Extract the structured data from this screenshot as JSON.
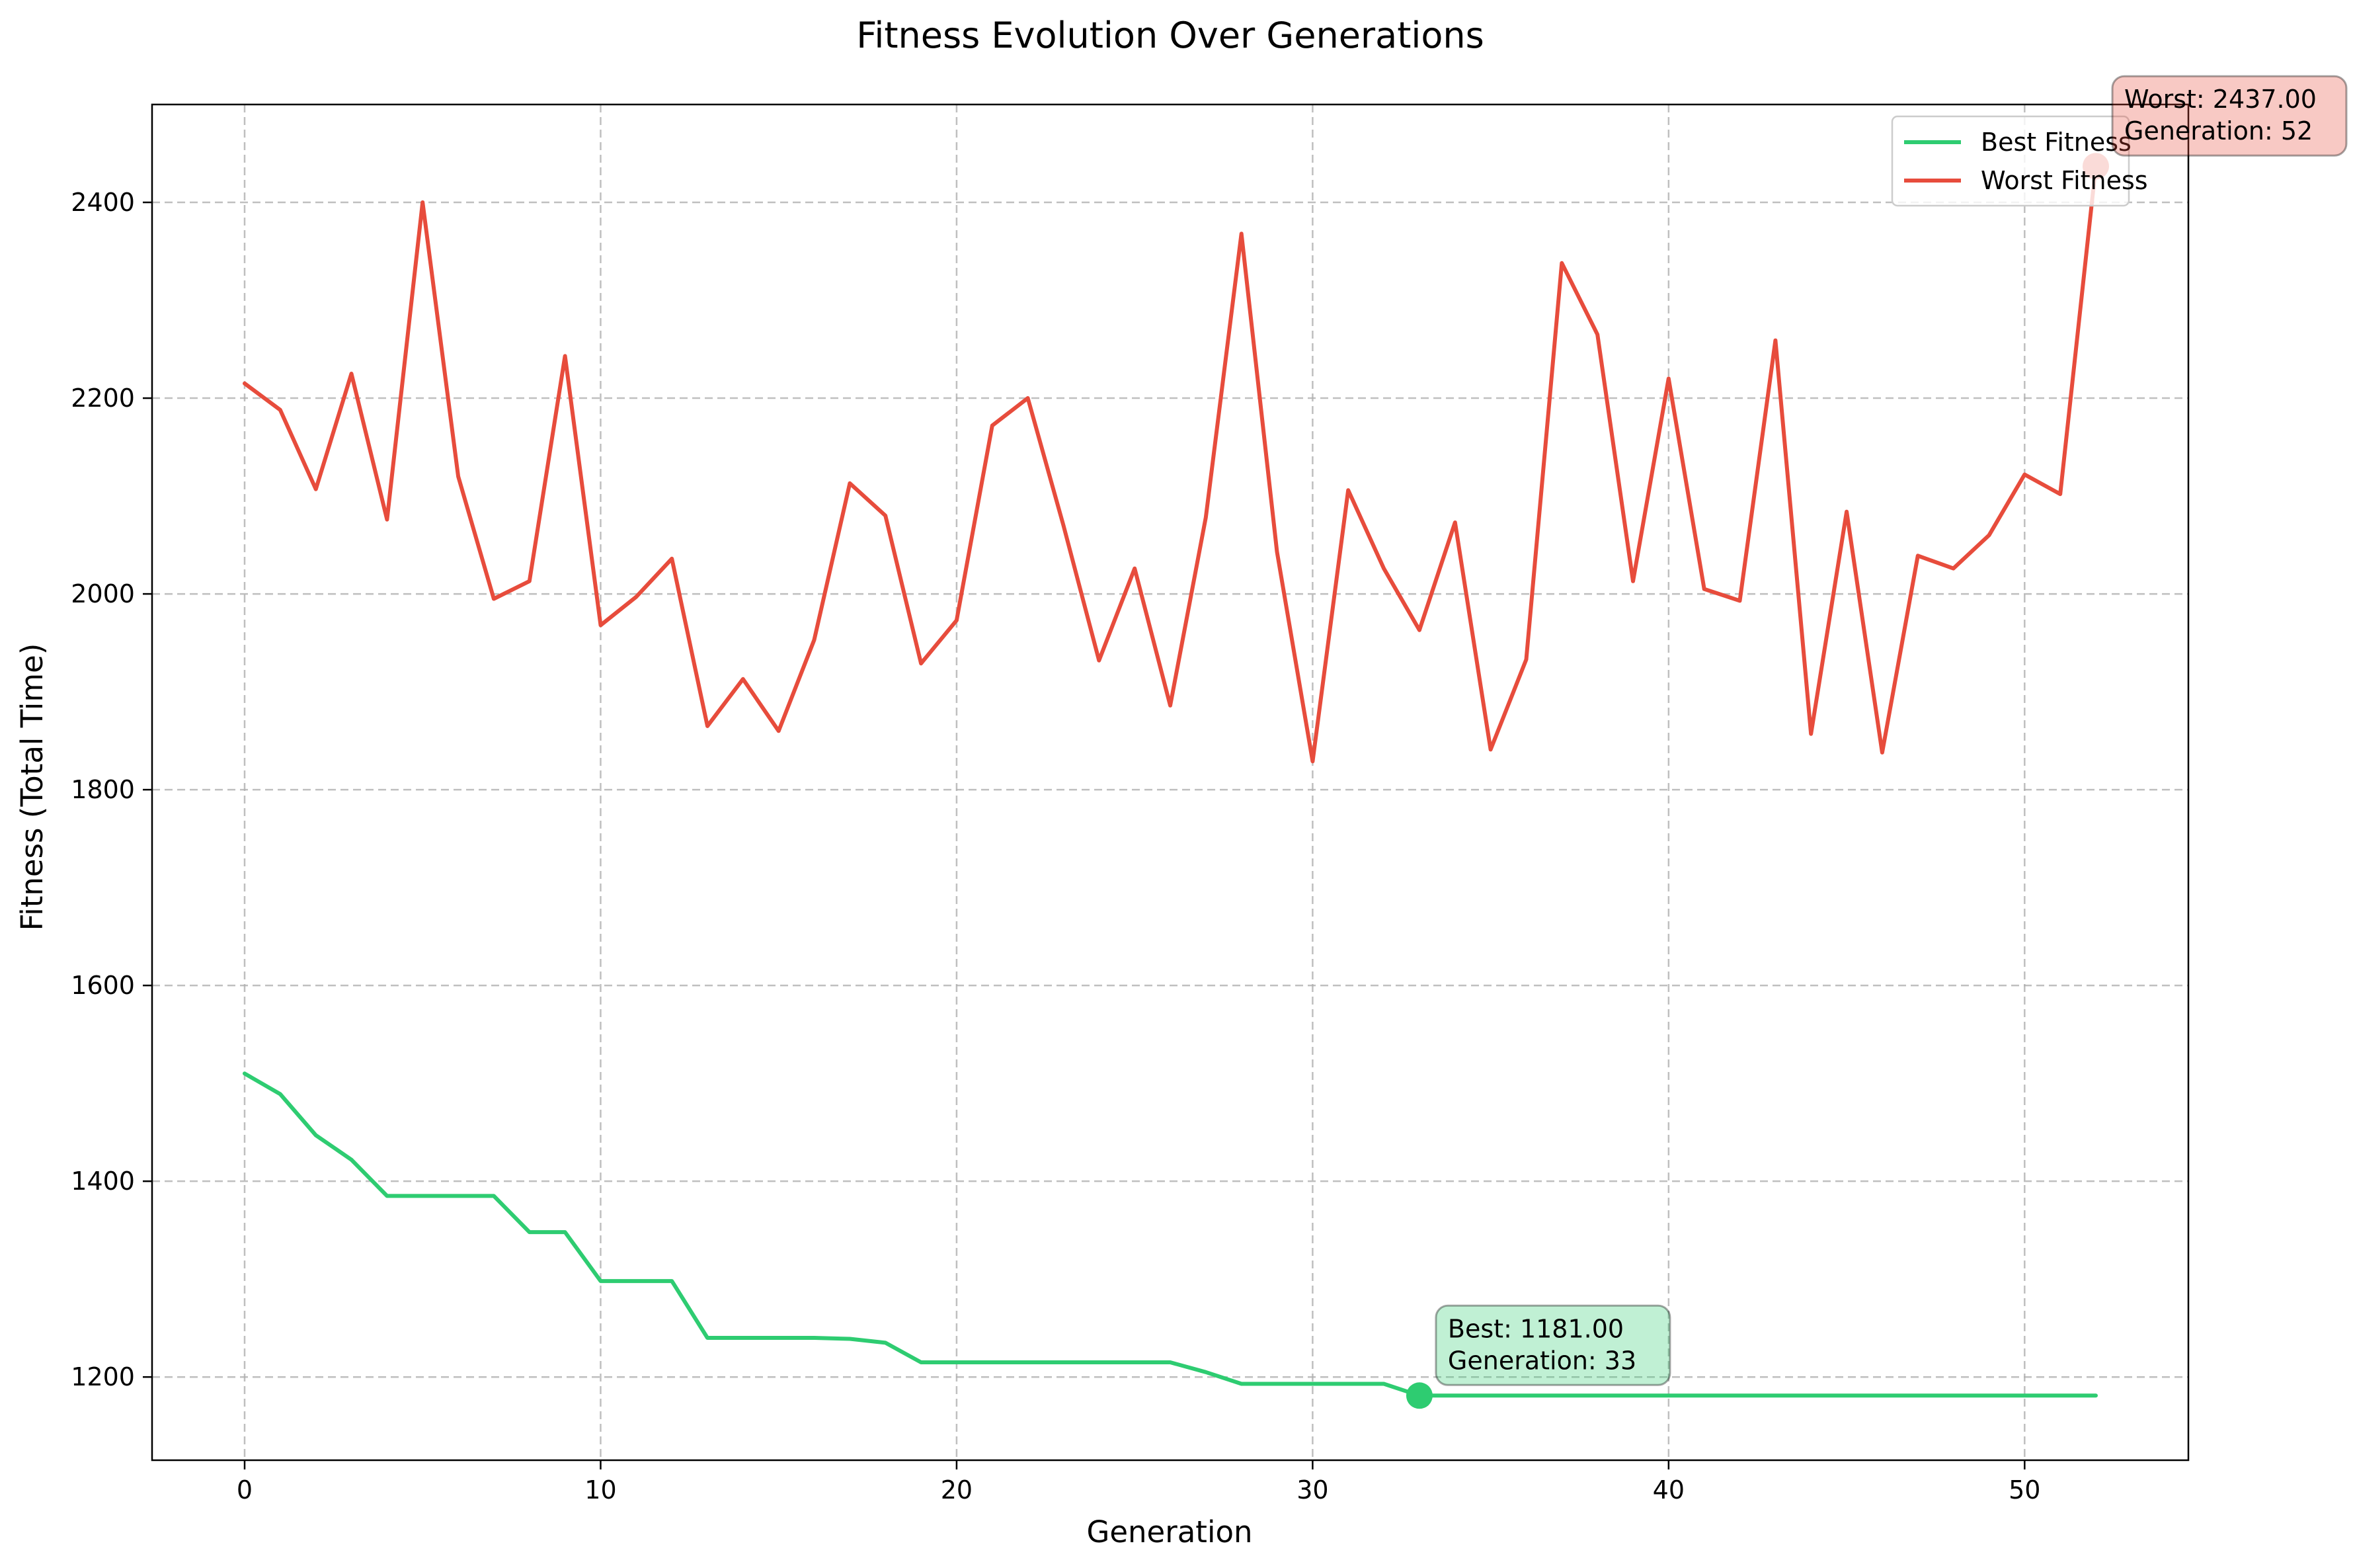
{
  "chart_data": {
    "type": "line",
    "title": "Fitness Evolution Over Generations",
    "xlabel": "Generation",
    "ylabel": "Fitness (Total Time)",
    "xlim": [
      -2.6,
      54.6
    ],
    "ylim": [
      1115,
      2500
    ],
    "xticks": [
      0,
      10,
      20,
      30,
      40,
      50
    ],
    "yticks": [
      1200,
      1400,
      1600,
      1800,
      2000,
      2200,
      2400
    ],
    "grid": true,
    "legend_position": "upper right",
    "x": [
      0,
      1,
      2,
      3,
      4,
      5,
      6,
      7,
      8,
      9,
      10,
      11,
      12,
      13,
      14,
      15,
      16,
      17,
      18,
      19,
      20,
      21,
      22,
      23,
      24,
      25,
      26,
      27,
      28,
      29,
      30,
      31,
      32,
      33,
      34,
      35,
      36,
      37,
      38,
      39,
      40,
      41,
      42,
      43,
      44,
      45,
      46,
      47,
      48,
      49,
      50,
      51,
      52
    ],
    "series": [
      {
        "name": "Best Fitness",
        "color": "#2ecc71",
        "values": [
          1510,
          1489,
          1447,
          1422,
          1385,
          1385,
          1385,
          1385,
          1348,
          1348,
          1298,
          1298,
          1298,
          1240,
          1240,
          1240,
          1240,
          1239,
          1235,
          1215,
          1215,
          1215,
          1215,
          1215,
          1215,
          1215,
          1215,
          1205,
          1193,
          1193,
          1193,
          1193,
          1193,
          1181,
          1181,
          1181,
          1181,
          1181,
          1181,
          1181,
          1181,
          1181,
          1181,
          1181,
          1181,
          1181,
          1181,
          1181,
          1181,
          1181,
          1181,
          1181,
          1181
        ]
      },
      {
        "name": "Worst Fitness",
        "color": "#e74c3c",
        "values": [
          2215,
          2188,
          2107,
          2225,
          2076,
          2400,
          2120,
          1995,
          2013,
          2243,
          1968,
          1997,
          2036,
          1865,
          1913,
          1860,
          1953,
          2113,
          2080,
          1929,
          1973,
          2172,
          2200,
          2070,
          1932,
          2026,
          1886,
          2078,
          2368,
          2043,
          1829,
          2106,
          2026,
          1963,
          2073,
          1841,
          1933,
          2338,
          2265,
          2013,
          2220,
          2005,
          1993,
          2259,
          1857,
          2084,
          1838,
          2039,
          2026,
          2060,
          2122,
          2102,
          2437
        ]
      }
    ],
    "annotations": [
      {
        "series": "Best Fitness",
        "x": 33,
        "y": 1181,
        "lines": [
          "Best: 1181.00",
          "Generation: 33"
        ],
        "box_color": "#2ecc71"
      },
      {
        "series": "Worst Fitness",
        "x": 52,
        "y": 2437,
        "lines": [
          "Worst: 2437.00",
          "Generation: 52"
        ],
        "box_color": "#e74c3c"
      }
    ]
  }
}
